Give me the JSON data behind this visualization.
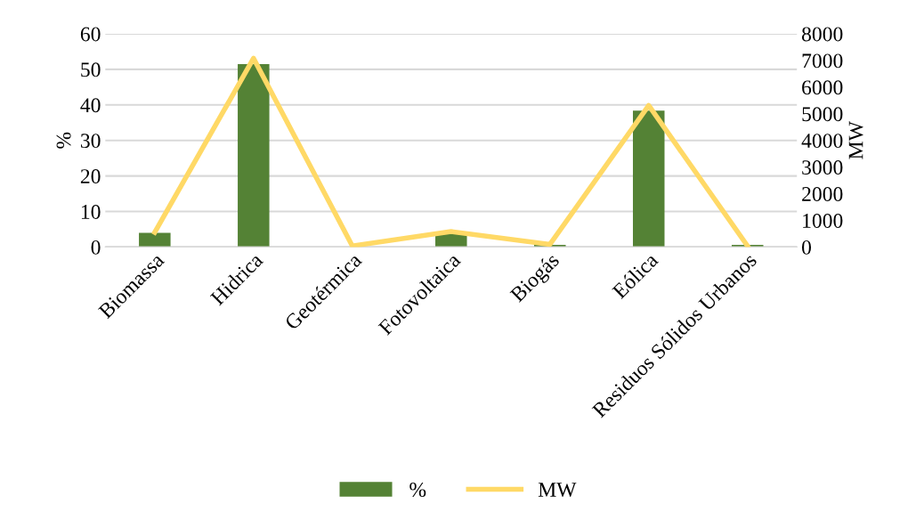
{
  "chart_data": {
    "type": "bar",
    "categories": [
      "Biomassa",
      "Hidrica",
      "Geotérmica",
      "Fotovoltaica",
      "Biogás",
      "Eólica",
      "Residuos Sólidos Urbanos"
    ],
    "series": [
      {
        "name": "%",
        "color": "#548235",
        "values": [
          4.0,
          51.5,
          null,
          3.7,
          0.6,
          38.4,
          0.6
        ]
      },
      {
        "name": "MW",
        "type": "line",
        "axis": "y2",
        "color": "#ffd966",
        "values": [
          550,
          7080,
          40,
          580,
          100,
          5310,
          40
        ]
      }
    ],
    "ylabel": "%",
    "y2label": "MW",
    "ylim": [
      0,
      60
    ],
    "yticks": [
      0,
      10,
      20,
      30,
      40,
      50,
      60
    ],
    "y2lim": [
      0,
      8000
    ],
    "y2ticks": [
      0,
      1000,
      2000,
      3000,
      4000,
      5000,
      6000,
      7000,
      8000
    ],
    "grid": "y",
    "legend": "bottom",
    "marker": "none",
    "line_style": "solid"
  }
}
